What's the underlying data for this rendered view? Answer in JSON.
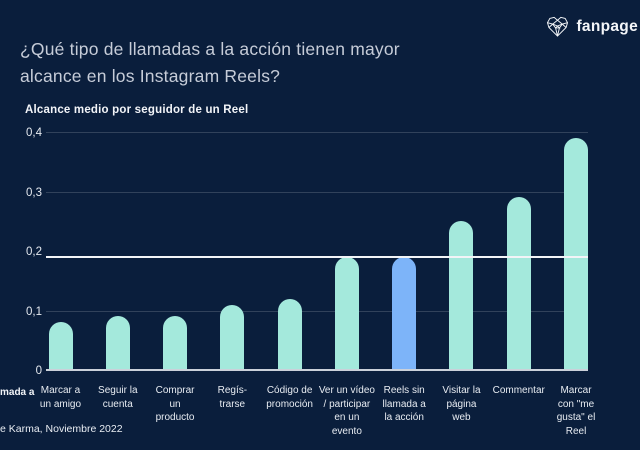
{
  "page": {
    "background_color": "#0A1E3C"
  },
  "header": {
    "title_line1": "¿Qué tipo de llamadas a la acción tienen mayor",
    "title_line2": "alcance en los Instagram Reels?",
    "logo_text": "fanpage",
    "logo_icon": "polygon-heart-icon"
  },
  "chart_data": {
    "type": "bar",
    "title": "Alcance medio por seguidor de un Reel",
    "categories": [
      "Marcar a\nun amigo",
      "Seguir la\ncuenta",
      "Comprar\nun\nproducto",
      "Regís-\ntrarse",
      "Código de\npromoción",
      "Ver un vídeo\n/ participar\nen un\nevento",
      "Reels sin\nllamada a\nla acción",
      "Visitar la\npágina\nweb",
      "Commentar",
      "Marcar\ncon \"me\ngusta\" el\nReel"
    ],
    "values": [
      0.08,
      0.09,
      0.09,
      0.11,
      0.12,
      0.19,
      0.19,
      0.25,
      0.29,
      0.39
    ],
    "highlight_index": 6,
    "benchmark_line_value": 0.19,
    "ylim": [
      0,
      0.4
    ],
    "yticks": [
      {
        "label": "0,4",
        "value": 0.4
      },
      {
        "label": "0,3",
        "value": 0.3
      },
      {
        "label": "0,2",
        "value": 0.2
      },
      {
        "label": "0,1",
        "value": 0.1
      },
      {
        "label": "0",
        "value": 0
      }
    ],
    "gridline_values": [
      0.4,
      0.3,
      0.1
    ],
    "legend_position": "none",
    "grid": "horizontal-faint",
    "colors": {
      "bar": "#A4E9DC",
      "highlight_bar": "#7DB4F9",
      "benchmark_line": "#F2F4F7",
      "baseline": "#CBD1DA",
      "gridline": "rgba(255,255,255,0.16)"
    }
  },
  "footer": {
    "clipped_label_fragment": "mada a",
    "source_fragment": "e Karma, Noviembre 2022"
  }
}
